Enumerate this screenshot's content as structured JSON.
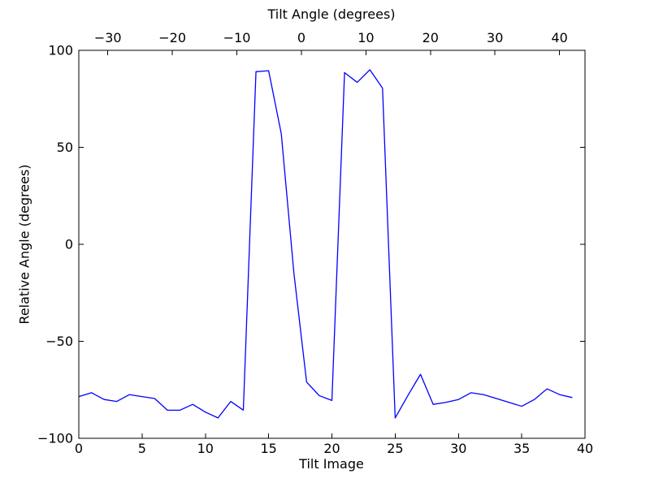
{
  "chart_data": {
    "type": "line",
    "title_top": "Tilt Angle (degrees)",
    "xlabel_bottom": "Tilt Image",
    "ylabel": "Relative Angle (degrees)",
    "xlim": [
      0,
      40
    ],
    "ylim": [
      -100,
      100
    ],
    "xlim_top": [
      -34.5,
      43.95
    ],
    "xticks_bottom": [
      0,
      5,
      10,
      15,
      20,
      25,
      30,
      35,
      40
    ],
    "xticks_top": [
      -30,
      -20,
      -10,
      0,
      10,
      20,
      30,
      40
    ],
    "yticks": [
      100,
      50,
      0,
      -50,
      -100
    ],
    "grid": false,
    "legend": "none",
    "line_color": "#0000ff",
    "frame_color": "#000000",
    "background_color": "#ffffff",
    "series": [
      {
        "name": "relative-angle",
        "x": [
          0,
          1,
          2,
          3,
          4,
          5,
          6,
          7,
          8,
          9,
          10,
          11,
          12,
          13,
          14,
          15,
          16,
          17,
          18,
          19,
          20,
          21,
          22,
          23,
          24,
          25,
          26,
          27,
          28,
          29,
          30,
          31,
          32,
          33,
          34,
          35,
          36,
          37,
          38,
          39
        ],
        "y": [
          -78.5,
          -76.5,
          -80,
          -81,
          -77.5,
          -78.5,
          -79.5,
          -85.5,
          -85.5,
          -82.5,
          -86.5,
          -89.5,
          -81,
          -85.5,
          89,
          89.5,
          57,
          -15,
          -71,
          -78,
          -80.5,
          88.5,
          83.5,
          90,
          80.5,
          -89.5,
          -78,
          -67,
          -82.5,
          -81.5,
          -80,
          -76.5,
          -77.5,
          -79.5,
          -81.5,
          -83.5,
          -80,
          -74.5,
          -77.5,
          -79
        ]
      }
    ]
  }
}
